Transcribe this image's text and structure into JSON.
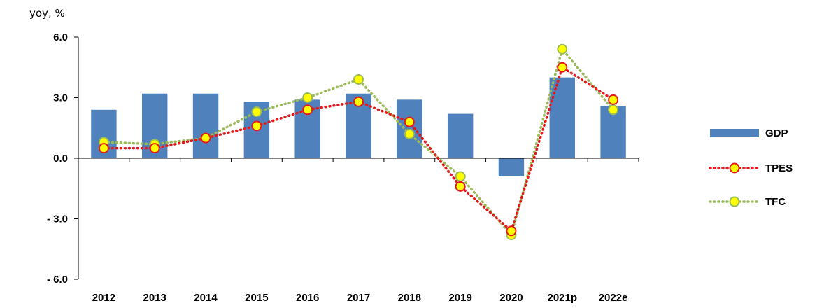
{
  "chart_data": {
    "type": "bar",
    "title": "",
    "unit_label": "yoy, %",
    "xlabel": "",
    "ylabel": "",
    "ylim": [
      -6.0,
      6.0
    ],
    "yticks": [
      6.0,
      3.0,
      0.0,
      -3.0,
      -6.0
    ],
    "ytick_labels": [
      "6.0",
      "3.0",
      "0.0",
      "- 3.0",
      "- 6.0"
    ],
    "categories": [
      "2012",
      "2013",
      "2014",
      "2015",
      "2016",
      "2017",
      "2018",
      "2019",
      "2020",
      "2021p",
      "2022e"
    ],
    "grid": false,
    "legend_position": "right",
    "series": [
      {
        "name": "GDP",
        "type": "bar",
        "color": "#4f81bd",
        "values": [
          2.4,
          3.2,
          3.2,
          2.8,
          2.9,
          3.2,
          2.9,
          2.2,
          -0.9,
          4.0,
          2.6
        ]
      },
      {
        "name": "TPES",
        "type": "line",
        "color": "#e31a1c",
        "marker_fill": "#ffff00",
        "marker_edge": "#e31a1c",
        "values": [
          0.5,
          0.5,
          1.0,
          1.6,
          2.4,
          2.8,
          1.8,
          -1.4,
          -3.6,
          4.5,
          2.9
        ]
      },
      {
        "name": "TFC",
        "type": "line",
        "color": "#9bbb59",
        "marker_fill": "#ffff00",
        "marker_edge": "#9bbb59",
        "values": [
          0.8,
          0.7,
          1.0,
          2.3,
          3.0,
          3.9,
          1.2,
          -0.9,
          -3.8,
          5.4,
          2.4
        ]
      }
    ]
  }
}
